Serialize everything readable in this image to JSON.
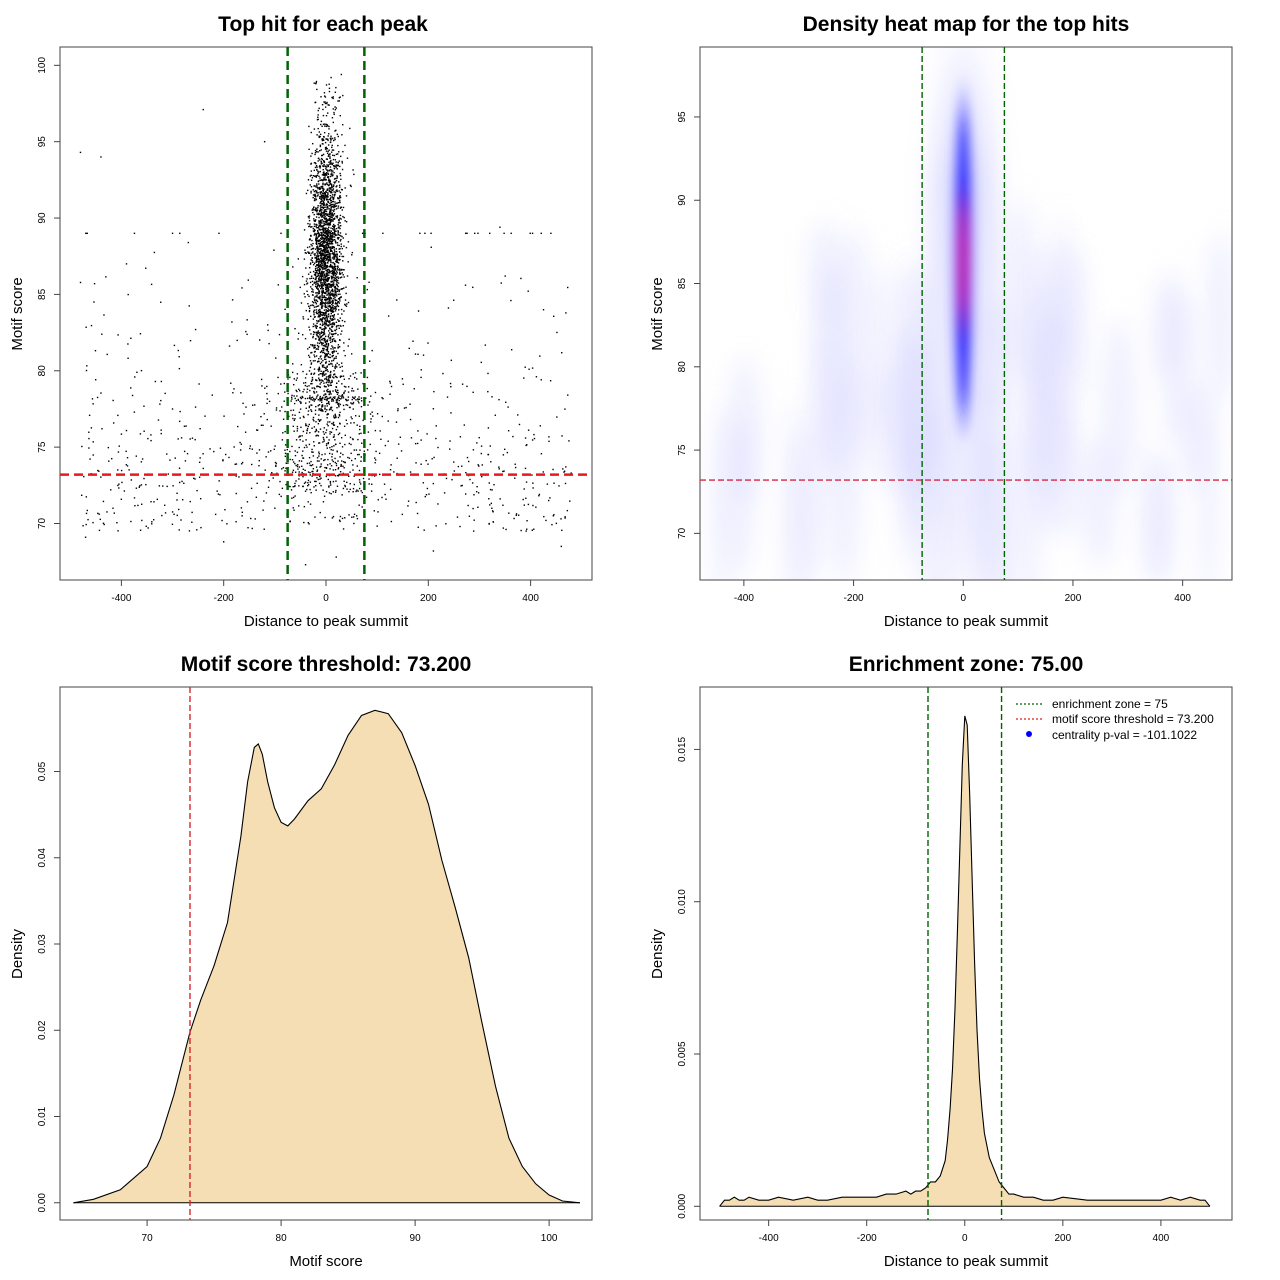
{
  "colors": {
    "green_line": "#006400",
    "red_line": "#e41a1c",
    "fill": "#f5deb3",
    "points": "#000000",
    "heat_low": "#ffffff",
    "heat_mid": "#0000ff",
    "heat_high": "#ff0000"
  },
  "chart_data": [
    {
      "id": "p1",
      "type": "scatter",
      "title": "Top hit for each peak",
      "xlabel": "Distance to peak summit",
      "ylabel": "Motif score",
      "xlim": [
        -520,
        520
      ],
      "ylim": [
        66.3,
        101.2
      ],
      "xticks": [
        "-400",
        "-200",
        "0",
        "200",
        "400"
      ],
      "xtick_values": [
        -400,
        -200,
        0,
        200,
        400
      ],
      "yticks": [
        "70",
        "75",
        "80",
        "85",
        "90",
        "95",
        "100"
      ],
      "ytick_values": [
        70,
        75,
        80,
        85,
        90,
        95,
        100
      ],
      "vlines": [
        -75,
        75
      ],
      "hline": 73.2,
      "sample_points": [
        [
          -480,
          94.3
        ],
        [
          -440,
          94
        ],
        [
          -240,
          97.1
        ],
        [
          -120,
          95.0
        ],
        [
          -390,
          87.0
        ],
        [
          -300,
          89.0
        ],
        [
          10,
          99.2
        ],
        [
          30,
          99.4
        ],
        [
          -20,
          98.8
        ],
        [
          340,
          89.4
        ],
        [
          -470,
          69.1
        ],
        [
          -360,
          70.2
        ],
        [
          -200,
          68.8
        ],
        [
          -40,
          67.3
        ],
        [
          20,
          67.8
        ],
        [
          210,
          68.2
        ],
        [
          460,
          68.5
        ],
        [
          430,
          70.2
        ],
        [
          60,
          70.5
        ],
        [
          -100,
          71.0
        ]
      ],
      "clusters": {
        "central": {
          "center_x": 0,
          "spread_x": 16,
          "y_range": [
            74,
            99
          ]
        },
        "background": {
          "x_range": [
            -480,
            480
          ],
          "y_range": [
            69,
            89
          ]
        }
      }
    },
    {
      "id": "p2",
      "type": "heatmap",
      "title": "Density heat map for the top hits",
      "xlabel": "Distance to peak summit",
      "ylabel": "Motif score",
      "xlim": [
        -480,
        490
      ],
      "ylim": [
        67.2,
        99.2
      ],
      "xticks": [
        "-400",
        "-200",
        "0",
        "200",
        "400"
      ],
      "xtick_values": [
        -400,
        -200,
        0,
        200,
        400
      ],
      "yticks": [
        "70",
        "75",
        "80",
        "85",
        "90",
        "95"
      ],
      "ytick_values": [
        70,
        75,
        80,
        85,
        90,
        95
      ],
      "vlines": [
        -75,
        75
      ],
      "hline": 73.2,
      "hotspot": {
        "x": 0,
        "y": 87.5,
        "x_halfwidth": 18,
        "y_range": [
          74,
          98
        ]
      }
    },
    {
      "id": "p3",
      "type": "area",
      "title": "Motif score threshold: 73.200",
      "xlabel": "Motif score",
      "ylabel": "Density",
      "xlim": [
        63.5,
        103.2
      ],
      "ylim": [
        -0.002,
        0.0598
      ],
      "xticks": [
        "70",
        "80",
        "90",
        "100"
      ],
      "xtick_values": [
        70,
        80,
        90,
        100
      ],
      "yticks": [
        "0.00",
        "0.01",
        "0.02",
        "0.03",
        "0.04",
        "0.05"
      ],
      "ytick_values": [
        0,
        0.01,
        0.02,
        0.03,
        0.04,
        0.05
      ],
      "vlines": [
        73.2
      ],
      "x": [
        64.5,
        66,
        68,
        70,
        71,
        72,
        73.2,
        74,
        75,
        76,
        77,
        77.5,
        78,
        78.3,
        78.6,
        79,
        79.5,
        80,
        80.5,
        81,
        82,
        83,
        84,
        85,
        86,
        87,
        88,
        89,
        90,
        91,
        92,
        93,
        94,
        95,
        96,
        97,
        98,
        99,
        100,
        101,
        102.3
      ],
      "y": [
        0.0,
        0.0004,
        0.0015,
        0.0042,
        0.0075,
        0.0125,
        0.0198,
        0.0235,
        0.0275,
        0.0325,
        0.0425,
        0.0488,
        0.0528,
        0.0532,
        0.052,
        0.0488,
        0.0458,
        0.0441,
        0.0437,
        0.0445,
        0.0466,
        0.048,
        0.0508,
        0.0542,
        0.0565,
        0.0571,
        0.0567,
        0.0545,
        0.0507,
        0.0462,
        0.0397,
        0.0342,
        0.0284,
        0.0208,
        0.0135,
        0.0075,
        0.0042,
        0.0022,
        0.0009,
        0.0002,
        0.0
      ]
    },
    {
      "id": "p4",
      "type": "area",
      "title": "Enrichment zone: 75.00",
      "xlabel": "Distance to peak summit",
      "ylabel": "Density",
      "xlim": [
        -540,
        545
      ],
      "ylim": [
        -0.00045,
        0.01705
      ],
      "xticks": [
        "-400",
        "-200",
        "0",
        "200",
        "400"
      ],
      "xtick_values": [
        -400,
        -200,
        0,
        200,
        400
      ],
      "yticks": [
        "0.000",
        "0.005",
        "0.010",
        "0.015"
      ],
      "ytick_values": [
        0,
        0.005,
        0.01,
        0.015
      ],
      "vlines": [
        -75,
        75
      ],
      "x": [
        -500,
        -490,
        -480,
        -470,
        -460,
        -450,
        -440,
        -420,
        -400,
        -380,
        -350,
        -320,
        -300,
        -280,
        -250,
        -220,
        -200,
        -180,
        -160,
        -140,
        -120,
        -110,
        -100,
        -90,
        -80,
        -70,
        -60,
        -50,
        -40,
        -35,
        -30,
        -25,
        -20,
        -15,
        -10,
        -5,
        0,
        5,
        10,
        15,
        20,
        25,
        30,
        35,
        40,
        50,
        60,
        70,
        80,
        90,
        100,
        120,
        140,
        160,
        180,
        200,
        250,
        300,
        350,
        400,
        420,
        440,
        460,
        480,
        490,
        500
      ],
      "y": [
        0.0,
        0.0002,
        0.0002,
        0.0003,
        0.0002,
        0.0002,
        0.0003,
        0.0002,
        0.0002,
        0.0003,
        0.0002,
        0.0003,
        0.0002,
        0.0002,
        0.0003,
        0.0003,
        0.0003,
        0.0003,
        0.0004,
        0.0004,
        0.0005,
        0.0004,
        0.0005,
        0.0005,
        0.0006,
        0.0008,
        0.0008,
        0.001,
        0.0015,
        0.0022,
        0.0032,
        0.0045,
        0.0065,
        0.009,
        0.0118,
        0.0145,
        0.0161,
        0.0158,
        0.0135,
        0.0108,
        0.008,
        0.0058,
        0.0042,
        0.0032,
        0.0024,
        0.0016,
        0.0012,
        0.0008,
        0.0006,
        0.0004,
        0.0004,
        0.0003,
        0.0003,
        0.0002,
        0.0002,
        0.0003,
        0.0002,
        0.0002,
        0.0002,
        0.0002,
        0.0003,
        0.0002,
        0.0003,
        0.0002,
        0.0002,
        0.0
      ],
      "legend_position": "top-right",
      "legend": [
        {
          "label": "enrichment zone = 75",
          "style": "dotted",
          "color": "#006400"
        },
        {
          "label": "motif score threshold = 73.200",
          "style": "dotted",
          "color": "#e41a1c"
        },
        {
          "label": "centrality p-val = -101.1022",
          "style": "point",
          "color": "#0000ff"
        }
      ]
    }
  ]
}
